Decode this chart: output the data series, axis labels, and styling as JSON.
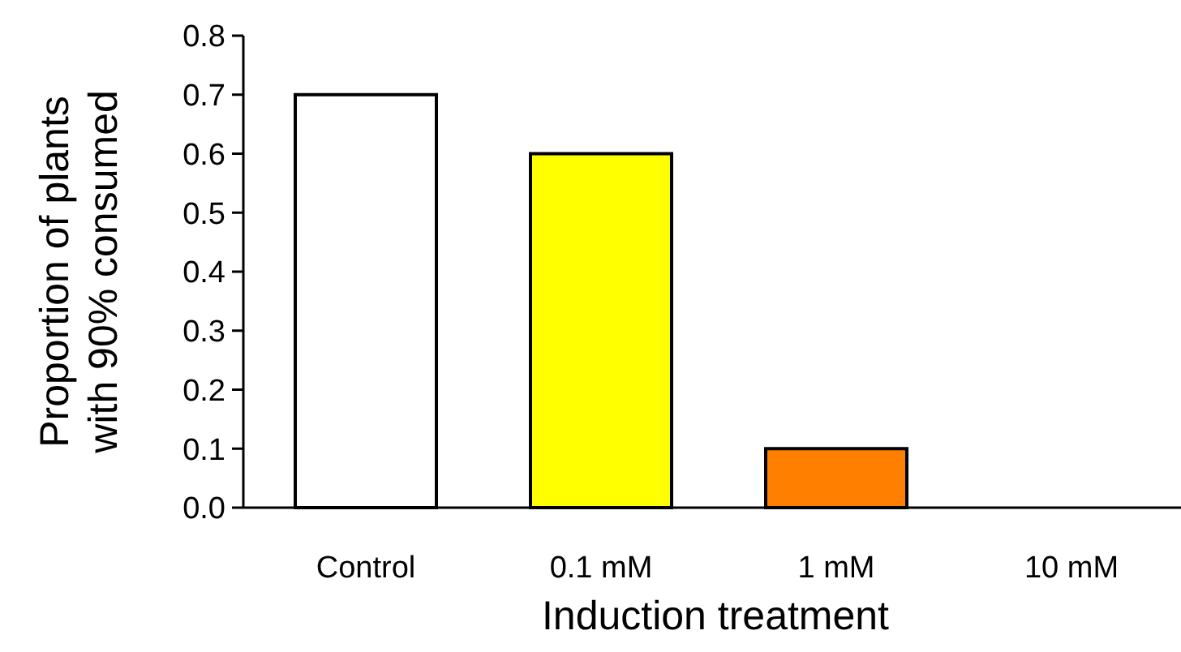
{
  "chart_data": {
    "type": "bar",
    "xlabel": "Induction treatment",
    "ylabel": "Proportion of plants\nwith 90% consumed",
    "categories": [
      "Control",
      "0.1 mM",
      "1 mM",
      "10 mM"
    ],
    "values": [
      0.7,
      0.6,
      0.1,
      0
    ],
    "colors": [
      "#ffffff",
      "#ffff00",
      "#ff8000",
      "#ff0000"
    ],
    "ylim": [
      0,
      0.8
    ],
    "yticks": [
      {
        "value": 0,
        "label": "0.0"
      },
      {
        "value": 0.1,
        "label": "0.1"
      },
      {
        "value": 0.2,
        "label": "0.2"
      },
      {
        "value": 0.3,
        "label": "0.3"
      },
      {
        "value": 0.4,
        "label": "0.4"
      },
      {
        "value": 0.5,
        "label": "0.5"
      },
      {
        "value": 0.6,
        "label": "0.6"
      },
      {
        "value": 0.7,
        "label": "0.7"
      },
      {
        "value": 0.8,
        "label": "0.8"
      }
    ],
    "grid": false
  }
}
